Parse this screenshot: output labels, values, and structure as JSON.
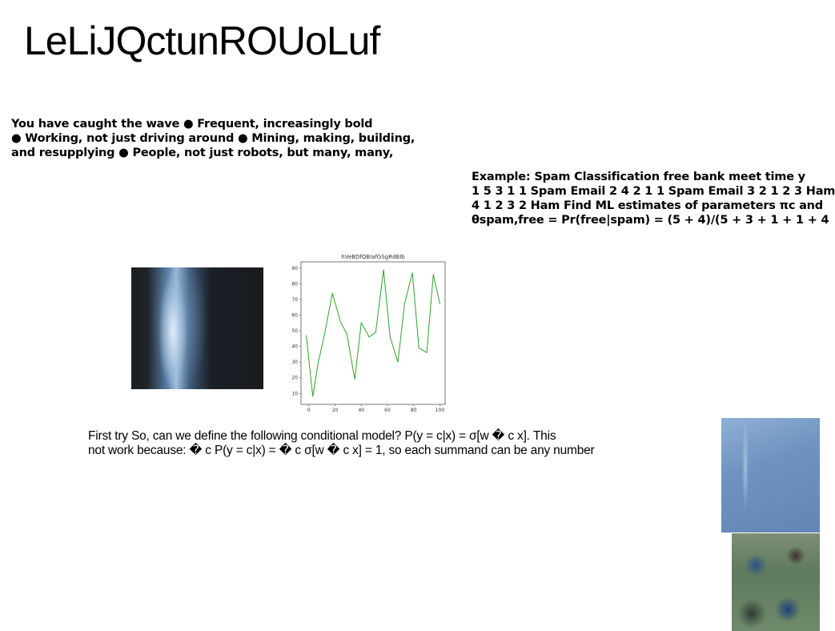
{
  "slide": {
    "title": "LeLiJQctunROUoLuf",
    "bullets": [
      "You have caught the wave ● Frequent, increasingly bold",
      "● Working, not just driving around ● Mining, making, building,",
      "and resupplying ● People, not just robots, but many, many,"
    ],
    "example": [
      "Example: Spam Classification free bank meet time y",
      "1 5 3 1 1 Spam Email 2 4 2 1 1 Spam Email 3 2 1 2 3 Ham",
      "4 1 2 3 2 Ham Find ML estimates of parameters πc and",
      "θspam,free = Pr(free|spam) = (5 + 4)/(5 + 3 + 1 + 1 + 4"
    ],
    "paragraph": [
      "First try So, can we define the following conditional model? P(y = c|x) = σ[w � c x]. This",
      "not work because: � c P(y = c|x) = � c σ[w � c x] = 1, so each summand can be any number"
    ]
  },
  "chart_data": {
    "type": "line",
    "title": "hVeBDfQBlafGSgRdBlb",
    "xlabel": "",
    "ylabel": "",
    "xlim": [
      -6,
      104
    ],
    "ylim": [
      3,
      94
    ],
    "xticks": [
      0,
      20,
      40,
      60,
      80,
      100
    ],
    "yticks": [
      10,
      20,
      30,
      40,
      50,
      60,
      70,
      80,
      90
    ],
    "grid": false,
    "series": [
      {
        "color": "#2ca02c",
        "x": [
          -2,
          3,
          7,
          12,
          18,
          24,
          29,
          35,
          40,
          46,
          51,
          57,
          62,
          68,
          73,
          79,
          84,
          90,
          95,
          100
        ],
        "y": [
          47,
          8,
          29,
          48,
          74,
          56,
          48,
          19,
          55,
          46,
          49,
          89,
          46,
          30,
          67,
          87,
          39,
          36,
          86,
          67
        ]
      }
    ]
  }
}
